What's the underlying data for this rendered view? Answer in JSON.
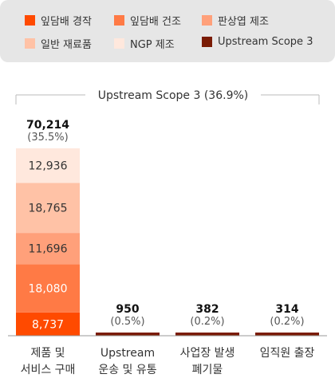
{
  "chart_data": {
    "type": "bar",
    "stacked": true,
    "categories": [
      [
        "제품 및",
        "서비스 구매"
      ],
      [
        "Upstream",
        "운송 및 유통"
      ],
      [
        "사업장 발생",
        "폐기물"
      ],
      [
        "임직원 출장"
      ]
    ],
    "series": [
      {
        "name": "잎담배 경작",
        "color": "#ff4a00",
        "values": [
          8737,
          null,
          null,
          null
        ]
      },
      {
        "name": "잎담배 건조",
        "color": "#ff7a45",
        "values": [
          18080,
          null,
          null,
          null
        ]
      },
      {
        "name": "판상엽 제조",
        "color": "#ffa07a",
        "values": [
          11696,
          null,
          null,
          null
        ]
      },
      {
        "name": "일반 재료품",
        "color": "#ffc2a6",
        "values": [
          18765,
          null,
          null,
          null
        ]
      },
      {
        "name": "NGP 제조",
        "color": "#ffe8dd",
        "values": [
          12936,
          null,
          null,
          null
        ]
      },
      {
        "name": "Upstream Scope 3",
        "color": "#7a1b04",
        "values": [
          null,
          950,
          382,
          314
        ]
      }
    ],
    "totals": [
      "70,214",
      "950",
      "382",
      "314"
    ],
    "percents": [
      "(35.5%)",
      "(0.5%)",
      "(0.2%)",
      "(0.2%)"
    ],
    "segment_labels": [
      "8,737",
      "18,080",
      "11,696",
      "18,765",
      "12,936"
    ],
    "bracket_label": "Upstream Scope 3 (36.9%)",
    "legend_position": "top"
  }
}
